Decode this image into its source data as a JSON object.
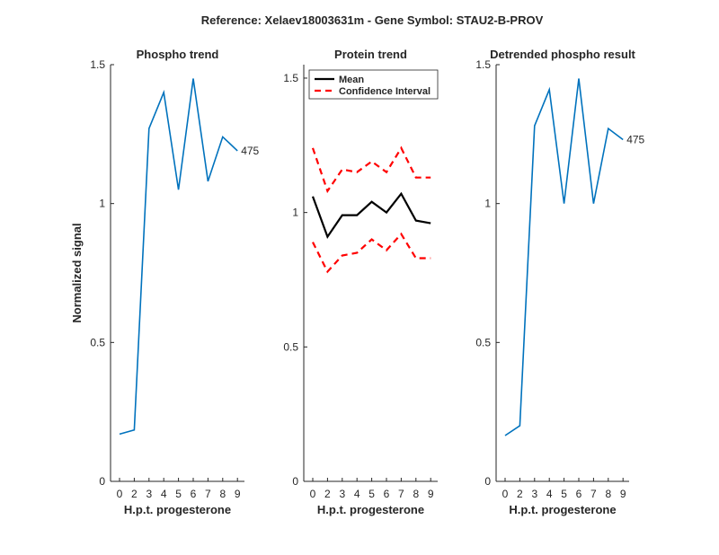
{
  "figure": {
    "suptitle": "Reference:  Xelaev18003631m - Gene Symbol:  STAU2-B-PROV"
  },
  "colors": {
    "phospho_line": "#0072BD",
    "mean_line": "#000000",
    "ci_line": "#FF0000",
    "axis": "#262626"
  },
  "chart_data": [
    {
      "type": "line",
      "title": "Phospho trend",
      "xlabel": "H.p.t. progesterone",
      "ylabel": "Normalized signal",
      "categories": [
        "0",
        "2",
        "3",
        "4",
        "5",
        "6",
        "7",
        "8",
        "9"
      ],
      "ylim": [
        0,
        1.5
      ],
      "yticks": [
        "0",
        "0.5",
        "1",
        "1.5"
      ],
      "grid": false,
      "series": [
        {
          "values": [
            0.17,
            0.185,
            1.27,
            1.4,
            1.05,
            1.45,
            1.08,
            1.24,
            1.19
          ],
          "end_label": "475"
        }
      ]
    },
    {
      "type": "line",
      "title": "Protein trend",
      "xlabel": "H.p.t. progesterone",
      "categories": [
        "0",
        "2",
        "3",
        "4",
        "5",
        "6",
        "7",
        "8",
        "9"
      ],
      "ylim": [
        0,
        1.55
      ],
      "yticks": [
        "0",
        "0.5",
        "1",
        "1.5"
      ],
      "grid": false,
      "legend": {
        "placement": "top-left",
        "entries": [
          "Mean",
          "Confidence Interval"
        ]
      },
      "series": [
        {
          "name": "Mean",
          "values": [
            1.06,
            0.91,
            0.99,
            0.99,
            1.04,
            1.0,
            1.07,
            0.97,
            0.96
          ]
        },
        {
          "name": "Confidence Interval",
          "values": [
            1.24,
            1.08,
            1.16,
            1.15,
            1.19,
            1.15,
            1.24,
            1.13,
            1.13
          ]
        },
        {
          "name": "Confidence Interval",
          "values": [
            0.89,
            0.78,
            0.84,
            0.85,
            0.9,
            0.86,
            0.92,
            0.83,
            0.83
          ]
        }
      ]
    },
    {
      "type": "line",
      "title": "Detrended phospho result",
      "xlabel": "H.p.t. progesterone",
      "categories": [
        "0",
        "2",
        "3",
        "4",
        "5",
        "6",
        "7",
        "8",
        "9"
      ],
      "ylim": [
        0,
        1.5
      ],
      "yticks": [
        "0",
        "0.5",
        "1",
        "1.5"
      ],
      "grid": false,
      "series": [
        {
          "values": [
            0.165,
            0.2,
            1.28,
            1.41,
            1.0,
            1.45,
            1.0,
            1.27,
            1.23
          ],
          "end_label": "475"
        }
      ]
    }
  ]
}
